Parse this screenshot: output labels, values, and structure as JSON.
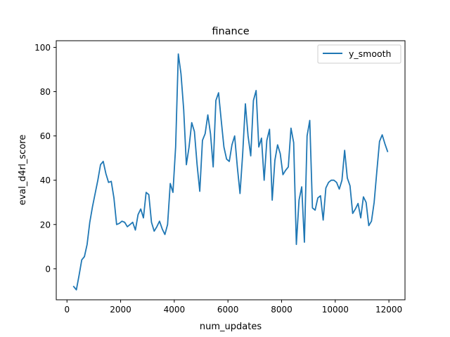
{
  "chart_data": {
    "type": "line",
    "title": "finance",
    "xlabel": "num_updates",
    "ylabel": "eval_d4rl_score",
    "xlim": [
      -400,
      12600
    ],
    "ylim": [
      -14,
      103
    ],
    "xticks": [
      0,
      2000,
      4000,
      6000,
      8000,
      10000,
      12000
    ],
    "yticks": [
      0,
      20,
      40,
      60,
      80,
      100
    ],
    "xtick_labels": [
      "0",
      "2000",
      "4000",
      "6000",
      "8000",
      "10000",
      "12000"
    ],
    "ytick_labels": [
      "0",
      "20",
      "40",
      "60",
      "80",
      "100"
    ],
    "grid": false,
    "legend": {
      "position": "top-right",
      "entries": [
        "y_smooth"
      ]
    },
    "series": [
      {
        "name": "y_smooth",
        "color": "#1f77b4",
        "x": [
          250,
          350,
          450,
          550,
          650,
          750,
          850,
          950,
          1050,
          1150,
          1250,
          1350,
          1450,
          1550,
          1650,
          1750,
          1850,
          1950,
          2050,
          2150,
          2250,
          2350,
          2450,
          2550,
          2650,
          2750,
          2850,
          2950,
          3050,
          3150,
          3250,
          3350,
          3450,
          3550,
          3650,
          3750,
          3850,
          3950,
          4050,
          4150,
          4250,
          4350,
          4450,
          4550,
          4650,
          4750,
          4850,
          4950,
          5050,
          5150,
          5250,
          5350,
          5450,
          5550,
          5650,
          5750,
          5850,
          5950,
          6050,
          6150,
          6250,
          6350,
          6450,
          6550,
          6650,
          6750,
          6850,
          6950,
          7050,
          7150,
          7250,
          7350,
          7450,
          7550,
          7650,
          7750,
          7850,
          7950,
          8050,
          8150,
          8250,
          8350,
          8450,
          8550,
          8650,
          8750,
          8850,
          8950,
          9050,
          9150,
          9250,
          9350,
          9450,
          9550,
          9650,
          9750,
          9850,
          9950,
          10050,
          10150,
          10250,
          10350,
          10450,
          10550,
          10650,
          10750,
          10850,
          10950,
          11050,
          11150,
          11250,
          11350,
          11450,
          11550,
          11650,
          11750,
          11850,
          11950
        ],
        "y": [
          -8,
          -9.5,
          -3,
          4,
          5.5,
          11,
          21,
          28,
          34,
          40,
          47,
          48.5,
          43,
          39,
          39.5,
          32,
          20,
          20.5,
          21.5,
          21,
          19,
          20,
          21,
          17.5,
          24.5,
          27,
          23,
          34.5,
          33.5,
          21,
          17,
          19,
          21.5,
          18,
          15.5,
          20,
          38.5,
          34.5,
          55,
          97,
          88,
          72,
          47,
          55,
          66,
          62,
          47,
          35,
          58,
          61,
          69.5,
          61,
          46,
          76,
          79.5,
          67,
          55,
          49.5,
          48.5,
          56,
          60,
          46,
          34,
          52,
          74.5,
          60,
          51,
          76,
          80.5,
          55,
          59,
          40,
          58,
          63,
          31,
          49,
          56,
          52,
          42.5,
          44.5,
          46,
          63.5,
          57,
          11,
          31,
          37,
          12,
          60,
          67,
          27.5,
          26.5,
          32,
          33,
          22,
          36.5,
          39,
          40,
          40,
          39,
          36,
          40,
          53.5,
          41,
          37.5,
          25,
          27,
          29.5,
          23,
          32.5,
          30,
          19.5,
          21.5,
          30,
          44,
          57.5,
          60.5,
          56.5,
          53
        ]
      }
    ]
  }
}
